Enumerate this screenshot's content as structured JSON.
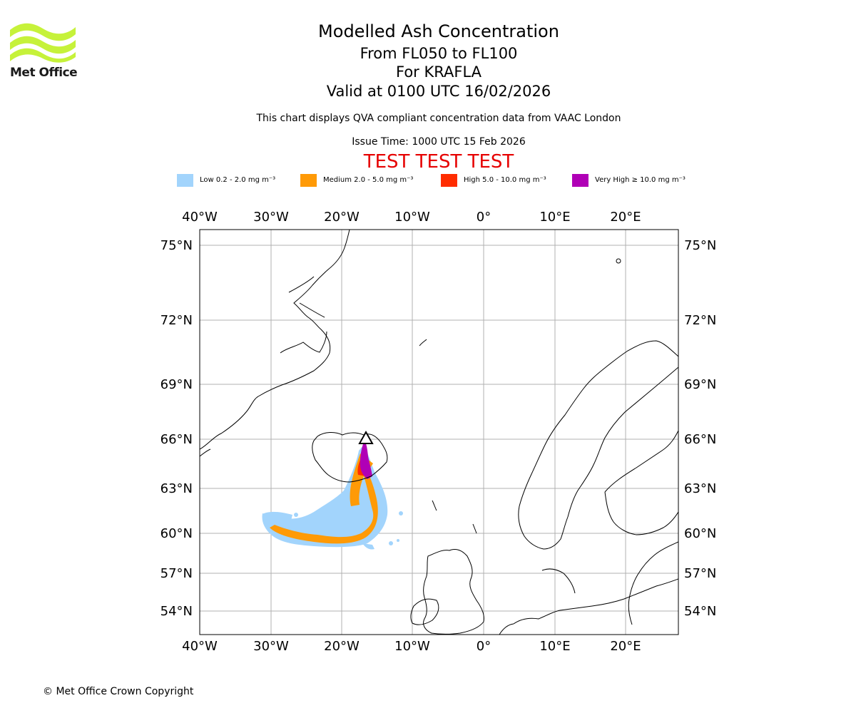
{
  "header": {
    "logo_text": "Met Office",
    "title": "Modelled Ash Concentration",
    "levels": "From FL050 to FL100",
    "volcano": "For KRAFLA",
    "valid": "Valid at 0100 UTC 16/02/2026",
    "subtitle": "This chart displays QVA compliant concentration data from VAAC London",
    "issue": "Issue Time: 1000 UTC 15 Feb 2026",
    "test_banner": "TEST TEST TEST"
  },
  "legend": [
    {
      "label": "Low 0.2 - 2.0 mg m⁻³",
      "color": "#a2d4fc"
    },
    {
      "label": "Medium 2.0 - 5.0 mg m⁻³",
      "color": "#ff9a06"
    },
    {
      "label": "High 5.0 - 10.0 mg m⁻³",
      "color": "#ff2c00"
    },
    {
      "label": "Very High ≥ 10.0 mg m⁻³",
      "color": "#b000b6"
    }
  ],
  "map": {
    "lon_labels": [
      "40°W",
      "30°W",
      "20°W",
      "10°W",
      "0°",
      "10°E",
      "20°E"
    ],
    "lat_labels": [
      "75°N",
      "72°N",
      "69°N",
      "66°N",
      "63°N",
      "60°N",
      "57°N",
      "54°N"
    ],
    "volcano_symbol": "triangle-icon",
    "colors": {
      "low": "#a2d4fc",
      "medium": "#ff9a06",
      "high": "#ff2c00",
      "very_high": "#b000b6",
      "grid": "#b0b0b0",
      "coast": "#000000"
    }
  },
  "footer": {
    "copyright": "© Met Office Crown Copyright"
  }
}
